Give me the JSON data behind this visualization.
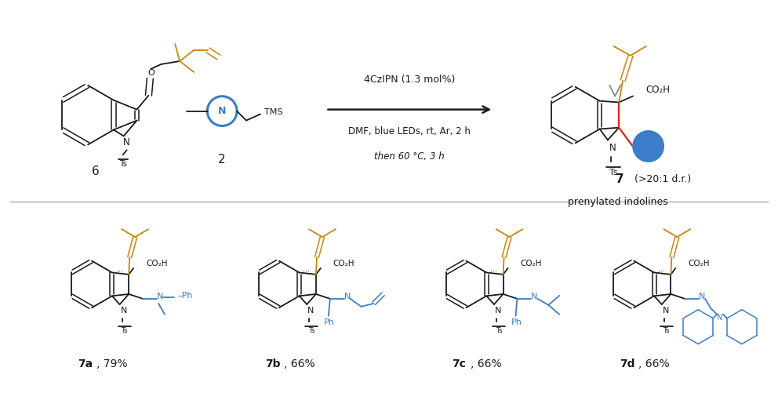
{
  "bg_color": "#ffffff",
  "fig_width": 9.92,
  "fig_height": 5.01,
  "dpi": 100,
  "prenyl_color": "#C8860A",
  "blue_color": "#3B7DC8",
  "red_color": "#E02020",
  "black_color": "#1a1a1a",
  "reaction_conditions_line1": "4CzIPN (1.3 mol%)",
  "reaction_conditions_line2": "DMF, blue LEDs, rt, Ar, 2 h",
  "reaction_conditions_line3": "then 60 °C, 3 h",
  "compound6_label": "6",
  "compound2_label": "2",
  "compound7_label": "7",
  "compound7_desc1": "(>20:1 d.r.)",
  "compound7_desc2": "prenylated indolines",
  "product_labels": [
    "7a",
    "7b",
    "7c",
    "7d"
  ],
  "product_yields": [
    "79%",
    "66%",
    "66%",
    "66%"
  ]
}
